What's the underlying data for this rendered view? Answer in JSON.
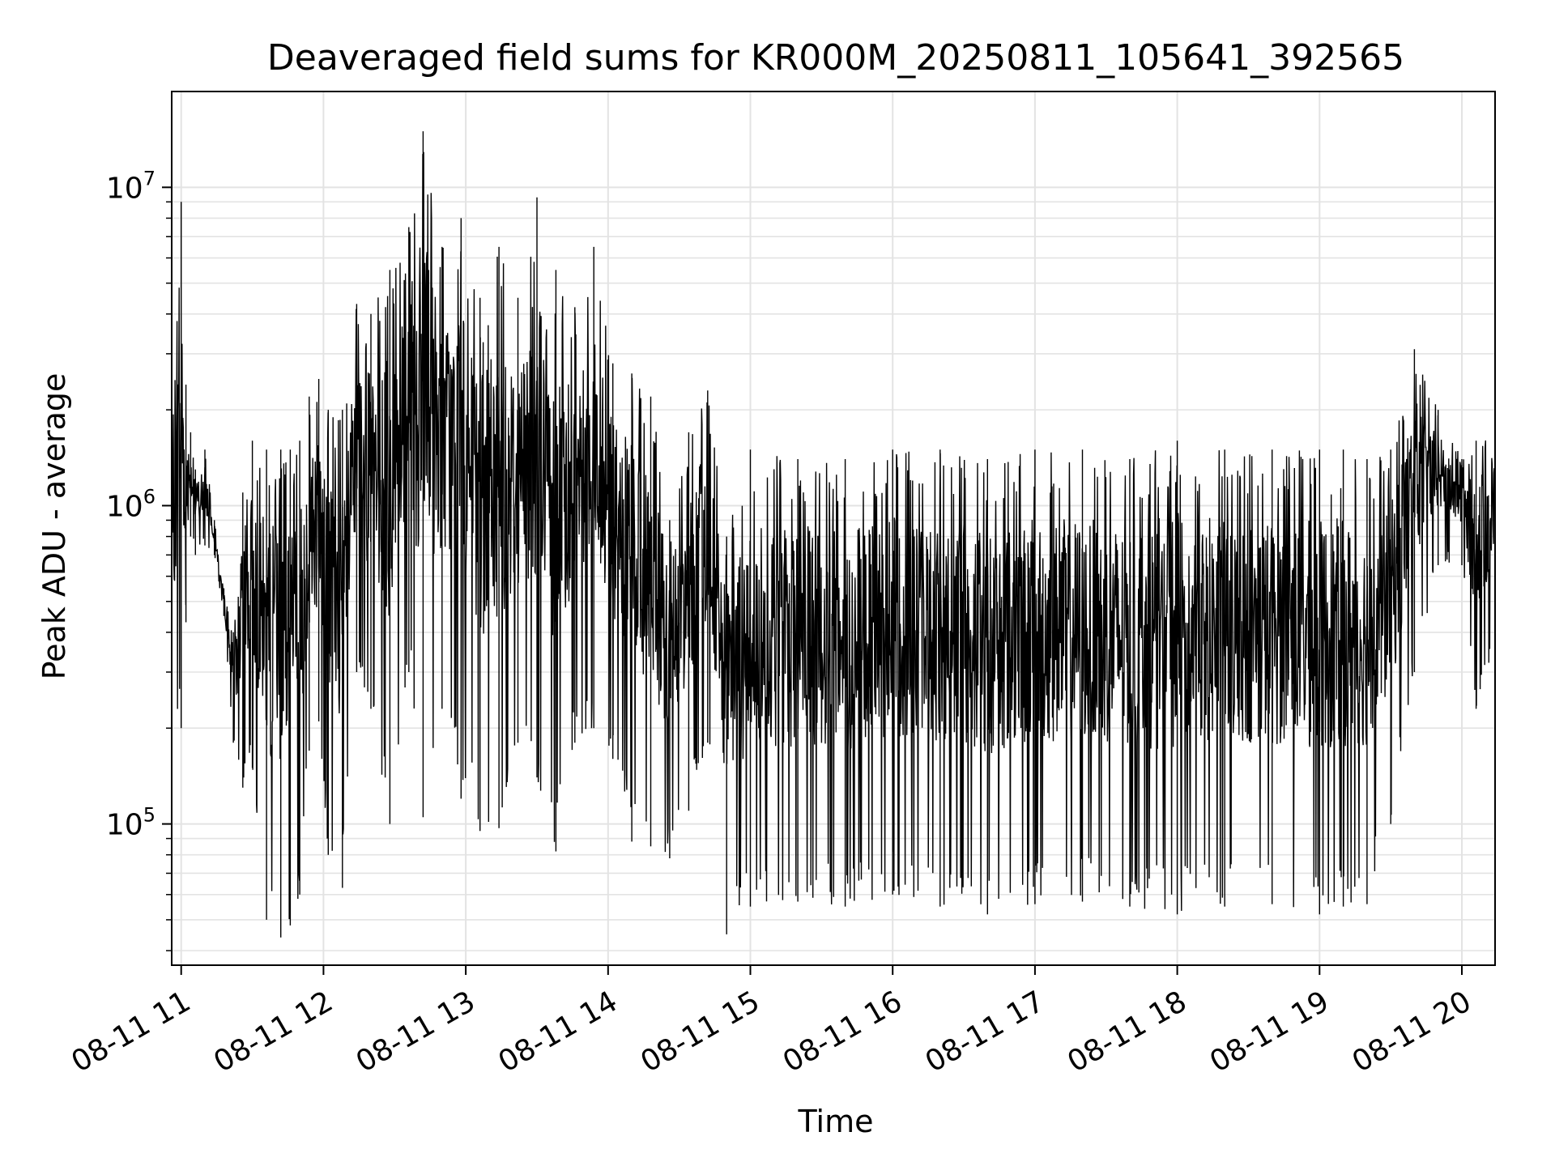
{
  "colors": {
    "series": "#000000",
    "grid": "#e3e3e3",
    "frame": "#000000",
    "background": "#ffffff"
  },
  "chart_data": {
    "type": "line",
    "title": "Deaveraged field sums for KR000M_20250811_105641_392565",
    "xlabel": "Time",
    "ylabel": "Peak ADU - average",
    "x_tick_labels": [
      "08-11 11",
      "08-11 12",
      "08-11 13",
      "08-11 14",
      "08-11 15",
      "08-11 16",
      "08-11 17",
      "08-11 18",
      "08-11 19",
      "08-11 20"
    ],
    "y_tick_labels": [
      {
        "base": "10",
        "exp": "5"
      },
      {
        "base": "10",
        "exp": "6"
      },
      {
        "base": "10",
        "exp": "7"
      }
    ],
    "x_range": [
      "2025-08-11 10:56",
      "2025-08-11 20:14"
    ],
    "ylim": [
      36000,
      20000000
    ],
    "y_scale": "log",
    "grid": true,
    "grid_minor": true,
    "legend": "none",
    "series": [
      {
        "x": [
          "2025-08-11 10:56",
          "2025-08-11 11:00",
          "2025-08-11 11:02",
          "2025-08-11 11:04",
          "2025-08-11 11:06",
          "2025-08-11 11:10",
          "2025-08-11 11:14",
          "2025-08-11 11:18",
          "2025-08-11 11:22",
          "2025-08-11 11:26",
          "2025-08-11 11:30",
          "2025-08-11 11:36",
          "2025-08-11 11:42",
          "2025-08-11 11:46",
          "2025-08-11 11:50",
          "2025-08-11 11:54",
          "2025-08-11 11:58",
          "2025-08-11 12:02",
          "2025-08-11 12:08",
          "2025-08-11 12:14",
          "2025-08-11 12:20",
          "2025-08-11 12:28",
          "2025-08-11 12:36",
          "2025-08-11 12:42",
          "2025-08-11 12:50",
          "2025-08-11 12:58",
          "2025-08-11 13:06",
          "2025-08-11 13:14",
          "2025-08-11 13:22",
          "2025-08-11 13:30",
          "2025-08-11 13:38",
          "2025-08-11 13:46",
          "2025-08-11 13:54",
          "2025-08-11 14:02",
          "2025-08-11 14:10",
          "2025-08-11 14:18",
          "2025-08-11 14:26",
          "2025-08-11 14:34",
          "2025-08-11 14:42",
          "2025-08-11 14:50",
          "2025-08-11 15:00",
          "2025-08-11 15:20",
          "2025-08-11 15:40",
          "2025-08-11 16:00",
          "2025-08-11 16:20",
          "2025-08-11 16:40",
          "2025-08-11 17:00",
          "2025-08-11 17:20",
          "2025-08-11 17:40",
          "2025-08-11 18:00",
          "2025-08-11 18:20",
          "2025-08-11 18:40",
          "2025-08-11 19:00",
          "2025-08-11 19:10",
          "2025-08-11 19:20",
          "2025-08-11 19:30",
          "2025-08-11 19:40",
          "2025-08-11 19:50",
          "2025-08-11 20:00",
          "2025-08-11 20:06",
          "2025-08-11 20:14"
        ],
        "high": [
          1400000,
          9000000,
          2400000,
          1700000,
          1300000,
          1500000,
          900000,
          550000,
          400000,
          1100000,
          1600000,
          1500000,
          1500000,
          1500000,
          1600000,
          2200000,
          2500000,
          2000000,
          2000000,
          4300000,
          4000000,
          5500000,
          7500000,
          15000000,
          6500000,
          8000000,
          4500000,
          6500000,
          4500000,
          9300000,
          5500000,
          4200000,
          6500000,
          2800000,
          2600000,
          2200000,
          900000,
          1700000,
          2300000,
          800000,
          1500000,
          1400000,
          1400000,
          1500000,
          1500000,
          1400000,
          1500000,
          1500000,
          1400000,
          1600000,
          1500000,
          1500000,
          1500000,
          1500000,
          1400000,
          1500000,
          3100000,
          2000000,
          1400000,
          1600000,
          2000000
        ],
        "low": [
          280000,
          200000,
          430000,
          800000,
          700000,
          750000,
          700000,
          450000,
          180000,
          130000,
          150000,
          50000,
          44000,
          48000,
          60000,
          170000,
          210000,
          80000,
          63000,
          300000,
          230000,
          100000,
          300000,
          105000,
          230000,
          120000,
          95000,
          97000,
          180000,
          140000,
          82000,
          180000,
          200000,
          160000,
          88000,
          85000,
          78000,
          110000,
          180000,
          45000,
          55000,
          57000,
          55000,
          60000,
          55000,
          52000,
          56000,
          57000,
          55000,
          52000,
          55000,
          56000,
          52000,
          55000,
          56000,
          100000,
          300000,
          650000,
          650000,
          230000,
          350000
        ]
      }
    ]
  }
}
